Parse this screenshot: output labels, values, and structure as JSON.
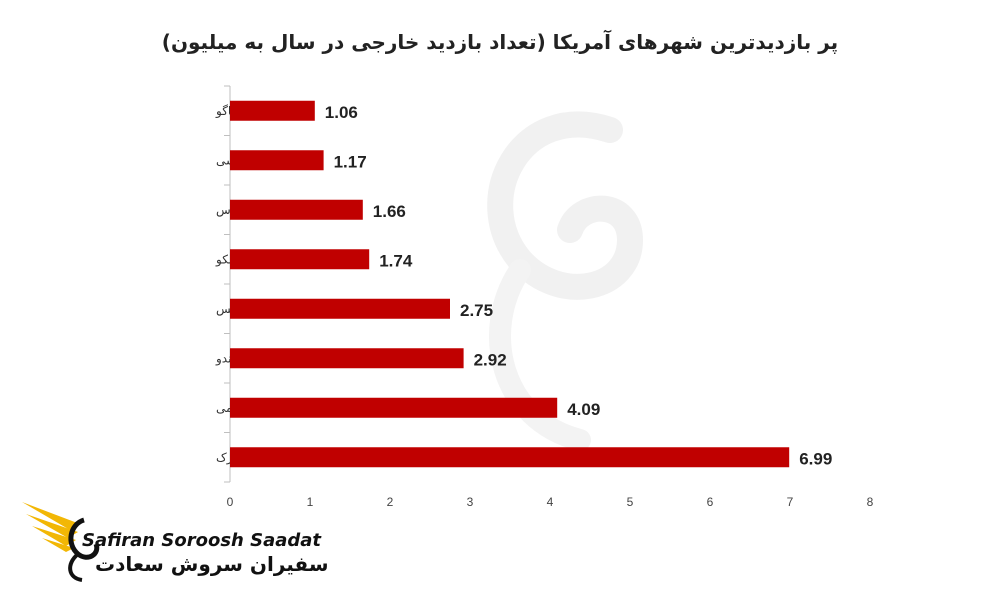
{
  "chart_data": {
    "type": "bar",
    "orientation": "horizontal",
    "title": "پر بازدیدترین شهرهای آمریکا (تعداد بازدید خارجی در سال به میلیون)",
    "categories": [
      "شیکاگو",
      "واشینگتن دی سی",
      "لاس وگاس",
      "سن فرانسیسکو",
      "لس آنجلس",
      "اورلاندو",
      "میامی",
      "نیویورک"
    ],
    "values": [
      1.06,
      1.17,
      1.66,
      1.74,
      2.75,
      2.92,
      4.09,
      6.99
    ],
    "value_labels": [
      "1.06",
      "1.17",
      "1.66",
      "1.74",
      "2.75",
      "2.92",
      "4.09",
      "6.99"
    ],
    "xlim": [
      0,
      8
    ],
    "x_ticks": [
      "0",
      "1",
      "2",
      "3",
      "4",
      "5",
      "6",
      "7",
      "8"
    ],
    "xlabel": "",
    "ylabel": "",
    "grid": false,
    "bar_color": "#c00000"
  },
  "logo": {
    "name_en": "Safiran Soroosh Saadat",
    "name_fa": "سفیران سروش سعادت",
    "accent_color": "#f2b705"
  }
}
